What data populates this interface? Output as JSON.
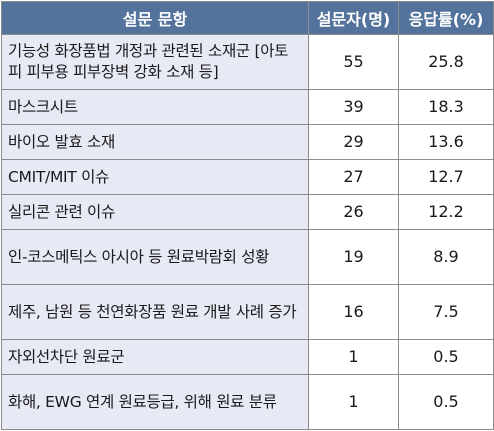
{
  "table": {
    "headers": [
      "설문 문항",
      "설문자(명)",
      "응답률(%)"
    ],
    "rows": [
      {
        "item": "기능성 화장품법 개정과 관련된 소재군 [아토피 피부용 피부장벽 강화 소재 등]",
        "count": "55",
        "rate": "25.8"
      },
      {
        "item": "마스크시트",
        "count": "39",
        "rate": "18.3"
      },
      {
        "item": "바이오 발효 소재",
        "count": "29",
        "rate": "13.6"
      },
      {
        "item": "CMIT/MIT 이슈",
        "count": "27",
        "rate": "12.7"
      },
      {
        "item": "실리콘 관련 이슈",
        "count": "26",
        "rate": "12.2"
      },
      {
        "item": "인-코스메틱스 아시아 등 원료박람회 성황",
        "count": "19",
        "rate": "8.9"
      },
      {
        "item": "제주, 남원 등 천연화장품 원료 개발 사례 증가",
        "count": "16",
        "rate": "7.5"
      },
      {
        "item": "자외선차단 원료군",
        "count": "1",
        "rate": "0.5"
      },
      {
        "item": "화해, EWG 연계 원료등급, 위해 원료 분류",
        "count": "1",
        "rate": "0.5"
      }
    ]
  }
}
